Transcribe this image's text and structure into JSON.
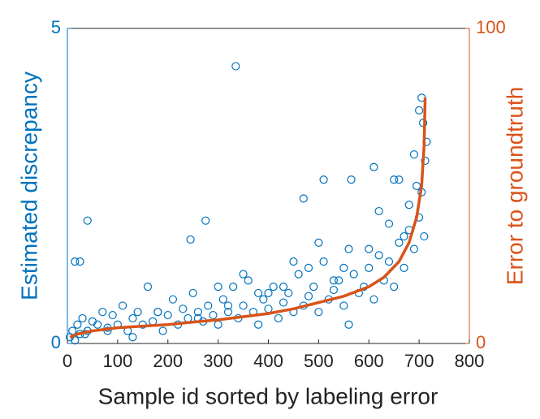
{
  "chart_data": {
    "type": "scatter",
    "x_label": "Sample id sorted by labeling error",
    "y_label": "Estimated discrepancy",
    "y2_label": "Error to groundtruth",
    "xlim": [
      0,
      800
    ],
    "xticks": [
      0,
      100,
      200,
      300,
      400,
      500,
      600,
      700,
      800
    ],
    "ylim": [
      0,
      5
    ],
    "yticks": [
      0,
      5
    ],
    "y2lim": [
      0,
      100
    ],
    "y2ticks": [
      0,
      100
    ],
    "grid": false,
    "series": [
      {
        "type": "scatter",
        "color": "#0072bd",
        "x": [
          5,
          10,
          15,
          20,
          25,
          30,
          40,
          50,
          60,
          70,
          80,
          90,
          100,
          110,
          120,
          130,
          140,
          150,
          160,
          170,
          180,
          190,
          200,
          210,
          220,
          230,
          240,
          250,
          260,
          270,
          280,
          290,
          300,
          310,
          320,
          330,
          340,
          350,
          360,
          370,
          380,
          390,
          400,
          410,
          420,
          430,
          440,
          450,
          460,
          470,
          480,
          490,
          500,
          510,
          520,
          530,
          540,
          550,
          560,
          570,
          580,
          590,
          600,
          610,
          620,
          630,
          640,
          650,
          660,
          670,
          680,
          690,
          700,
          705,
          710,
          715,
          15,
          25,
          40,
          245,
          275,
          335,
          470,
          510,
          565,
          610,
          700,
          705,
          690,
          680,
          650,
          620,
          560,
          530,
          480,
          430,
          380,
          320,
          260,
          180,
          130,
          80,
          35,
          300,
          350,
          400,
          450,
          500,
          550,
          600,
          640,
          660,
          670,
          695,
          708,
          712
        ],
        "values": [
          0.1,
          0.2,
          0.05,
          0.3,
          0.15,
          0.4,
          0.2,
          0.35,
          0.3,
          0.5,
          0.25,
          0.45,
          0.3,
          0.6,
          0.2,
          0.4,
          0.5,
          0.3,
          0.9,
          0.35,
          0.5,
          0.2,
          0.45,
          0.7,
          0.3,
          0.55,
          0.4,
          0.8,
          0.5,
          0.35,
          0.6,
          0.45,
          0.3,
          0.7,
          0.5,
          0.9,
          0.4,
          0.6,
          1.0,
          0.5,
          0.3,
          0.7,
          0.55,
          0.9,
          0.4,
          0.65,
          0.8,
          0.5,
          1.1,
          0.6,
          0.75,
          0.9,
          0.5,
          1.3,
          0.7,
          0.85,
          1.0,
          0.6,
          0.3,
          1.1,
          0.8,
          0.9,
          1.2,
          0.7,
          1.4,
          1.0,
          1.3,
          0.9,
          1.6,
          1.2,
          1.8,
          1.5,
          2.0,
          2.4,
          1.7,
          3.2,
          1.3,
          1.3,
          1.95,
          1.65,
          1.95,
          4.4,
          2.3,
          2.6,
          2.6,
          2.8,
          3.7,
          3.9,
          3.0,
          2.2,
          2.6,
          2.1,
          1.5,
          1.0,
          1.2,
          0.9,
          0.8,
          0.6,
          0.4,
          0.5,
          0.1,
          0.2,
          0.15,
          0.9,
          1.1,
          0.8,
          1.3,
          1.6,
          1.2,
          1.5,
          1.9,
          2.6,
          1.7,
          2.5,
          3.5,
          2.9
        ]
      },
      {
        "type": "line",
        "color": "#d95319",
        "axis": "y2",
        "x": [
          5,
          20,
          50,
          100,
          150,
          200,
          250,
          300,
          350,
          400,
          450,
          500,
          550,
          600,
          630,
          660,
          680,
          695,
          705,
          710,
          712
        ],
        "values": [
          2,
          3,
          4,
          5,
          5.5,
          6,
          6.8,
          7.5,
          8.5,
          9.5,
          11,
          13,
          15,
          18,
          21,
          26,
          32,
          40,
          50,
          63,
          78
        ]
      }
    ]
  }
}
